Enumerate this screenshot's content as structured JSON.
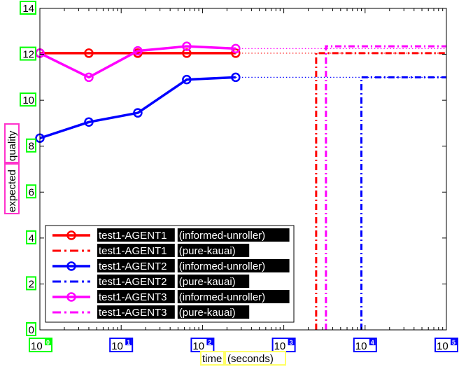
{
  "chart_data": {
    "type": "line",
    "xlabel": [
      "time",
      "(seconds)"
    ],
    "ylabel": [
      "expected",
      "quality"
    ],
    "x_scale": "log",
    "xlim": [
      1,
      100000
    ],
    "ylim": [
      0,
      14
    ],
    "x_ticks": [
      {
        "base": "10",
        "exp": "0",
        "value": 1
      },
      {
        "base": "10",
        "exp": "1",
        "value": 10
      },
      {
        "base": "10",
        "exp": "2",
        "value": 100
      },
      {
        "base": "10",
        "exp": "3",
        "value": 1000
      },
      {
        "base": "10",
        "exp": "4",
        "value": 10000
      },
      {
        "base": "10",
        "exp": "5",
        "value": 100000
      }
    ],
    "y_ticks": [
      "0",
      "2",
      "4",
      "6",
      "8",
      "10",
      "12",
      "14"
    ],
    "grid": false,
    "legend_position": "bottom-left",
    "series": [
      {
        "name": "test1-AGENT1",
        "method": "(informed-unroller)",
        "style": "solid-marker",
        "color": "#ff0000",
        "x": [
          1,
          4,
          16,
          64,
          256
        ],
        "y": [
          12.05,
          12.05,
          12.05,
          12.05,
          12.05
        ],
        "extend_dotted_to": 100000
      },
      {
        "name": "test1-AGENT1",
        "method": "(pure-kauai)",
        "style": "dashdot",
        "color": "#ff0000",
        "drop_x": 2500,
        "drop_y": 12.05,
        "end_x": 100000
      },
      {
        "name": "test1-AGENT2",
        "method": "(informed-unroller)",
        "style": "solid-marker",
        "color": "#0000ff",
        "x": [
          1,
          4,
          16,
          64,
          256
        ],
        "y": [
          8.35,
          9.05,
          9.45,
          10.9,
          11.0
        ],
        "extend_dotted_to": 100000
      },
      {
        "name": "test1-AGENT2",
        "method": "(pure-kauai)",
        "style": "dashdot",
        "color": "#0000ff",
        "drop_x": 9000,
        "drop_y": 11.0,
        "end_x": 100000
      },
      {
        "name": "test1-AGENT3",
        "method": "(informed-unroller)",
        "style": "solid-marker",
        "color": "#ff00ff",
        "x": [
          1,
          4,
          16,
          64,
          256
        ],
        "y": [
          12.05,
          11.0,
          12.15,
          12.35,
          12.25
        ],
        "extend_dotted_to": 100000
      },
      {
        "name": "test1-AGENT3",
        "method": "(pure-kauai)",
        "style": "dashdot",
        "color": "#ff00ff",
        "drop_x": 3300,
        "drop_y": 12.35,
        "end_x": 100000
      }
    ]
  },
  "colors": {
    "tick_box_green": "#00ff00",
    "tick_box_blue": "#0000ff",
    "xlabel_box": "#ffff66",
    "ylabel_box": "#ff33cc"
  }
}
